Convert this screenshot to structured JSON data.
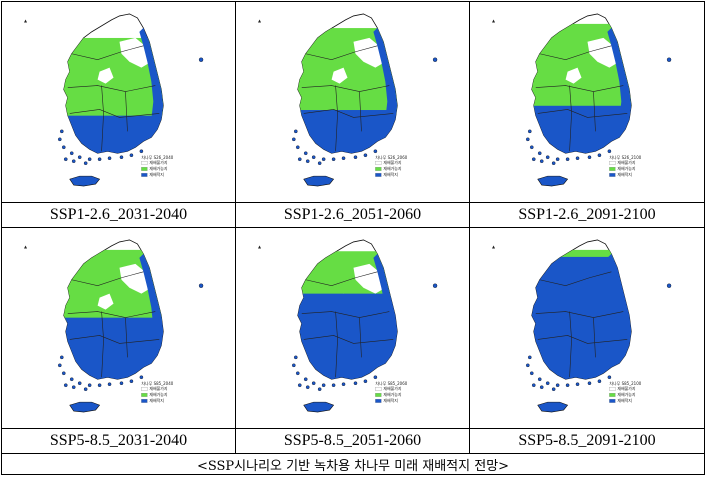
{
  "colors": {
    "green": "#66dd44",
    "blue": "#1a56c8",
    "land": "#ffffff",
    "sea": "#ffffff",
    "outline": "#111111"
  },
  "panels": [
    {
      "label": "SSP1-2.6_2031-2040",
      "legend_title": "차나무 S26_2040",
      "blue_level": 0.28,
      "green_level": 0.55
    },
    {
      "label": "SSP1-2.6_2051-2060",
      "legend_title": "차나무 S26_2060",
      "blue_level": 0.32,
      "green_level": 0.58
    },
    {
      "label": "SSP1-2.6_2091-2100",
      "legend_title": "차나무 S26_2100",
      "blue_level": 0.35,
      "green_level": 0.62
    },
    {
      "label": "SSP5-8.5_2031-2040",
      "legend_title": "차나무 S85_2040",
      "blue_level": 0.45,
      "green_level": 0.48
    },
    {
      "label": "SSP5-8.5_2051-2060",
      "legend_title": "차나무 S85_2060",
      "blue_level": 0.62,
      "green_level": 0.3
    },
    {
      "label": "SSP5-8.5_2091-2100",
      "legend_title": "차나무 S85_2100",
      "blue_level": 0.88,
      "green_level": 0.1
    }
  ],
  "legend": {
    "items": [
      "재배불가지",
      "재배가능지",
      "재배적지"
    ]
  },
  "caption": "<SSP시나리오 기반 녹차용 차나무 미래 재배적지 전망>"
}
